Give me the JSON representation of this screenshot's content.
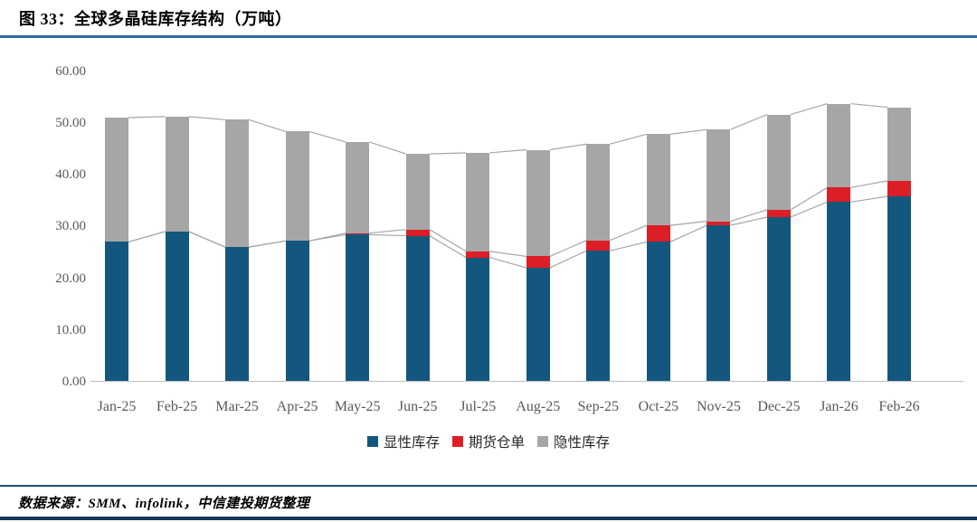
{
  "figure": {
    "title": "图 33：全球多晶硅库存结构（万吨）",
    "source": "数据来源：SMM、infolink，中信建投期货整理"
  },
  "colors": {
    "title_rule": "#2a6ba5",
    "source_rule": "#1f4e79",
    "bottom_rule": "#17375e",
    "axis_line": "#bfbfbf",
    "tick_label": "#595959",
    "connector_line": "#a6a6a6"
  },
  "chart_data": {
    "type": "bar",
    "stacked": true,
    "title": "全球多晶硅库存结构（万吨）",
    "xlabel": "",
    "ylabel": "",
    "ylim": [
      0,
      60
    ],
    "yticks": [
      "0.00",
      "10.00",
      "20.00",
      "30.00",
      "40.00",
      "50.00",
      "60.00"
    ],
    "grid": false,
    "legend_position": "bottom",
    "series_connector_lines": true,
    "categories": [
      "Jan-25",
      "Feb-25",
      "Mar-25",
      "Apr-25",
      "May-25",
      "Jun-25",
      "Jul-25",
      "Aug-25",
      "Sep-25",
      "Oct-25",
      "Nov-25",
      "Dec-25",
      "Jan-26",
      "Feb-26"
    ],
    "series": [
      {
        "key": "explicit-inventory",
        "name": "显性库存",
        "color": "#14577e",
        "values": [
          27.0,
          29.0,
          26.0,
          27.2,
          28.4,
          28.2,
          24.0,
          22.0,
          25.3,
          27.0,
          30.2,
          31.8,
          34.7,
          35.8
        ]
      },
      {
        "key": "futures-warehouse-receipts",
        "name": "期货仓单",
        "color": "#dc1f26",
        "values": [
          0,
          0,
          0,
          0,
          0.3,
          1.2,
          1.2,
          2.2,
          2.0,
          3.2,
          0.8,
          1.4,
          2.8,
          3.0
        ]
      },
      {
        "key": "implicit-inventory",
        "name": "隐性库存",
        "color": "#a6a6a6",
        "values": [
          24.0,
          22.2,
          24.6,
          21.1,
          17.6,
          14.6,
          19.0,
          20.6,
          18.6,
          17.6,
          17.7,
          18.4,
          16.2,
          14.2
        ]
      }
    ],
    "totals": [
      51.0,
      51.2,
      50.6,
      48.3,
      46.3,
      44.0,
      44.2,
      44.8,
      45.9,
      47.8,
      48.7,
      51.6,
      53.7,
      53.0
    ]
  }
}
